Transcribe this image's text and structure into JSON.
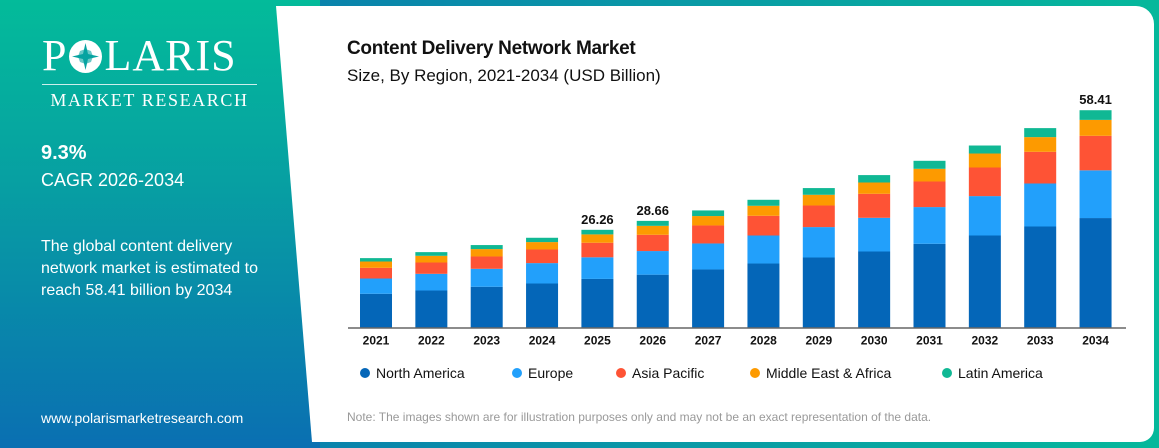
{
  "brand": {
    "name": "POLARIS",
    "tagline": "MARKET RESEARCH",
    "url": "www.polarismarketresearch.com"
  },
  "highlights": {
    "cagr_value": "9.3%",
    "cagr_label": "CAGR 2026-2034",
    "description": "The global content delivery network market is estimated to reach 58.41 billion by 2034"
  },
  "note": "Note: The images shown are for illustration purposes only and may not be an exact representation of the data.",
  "colors": {
    "North America": "#0466b8",
    "Europe": "#22a0fb",
    "Asia Pacific": "#fe5335",
    "Middle East & Africa": "#fd9a00",
    "Latin America": "#10b894"
  },
  "chart_data": {
    "type": "bar",
    "stacked": true,
    "title": "Content Delivery Network Market",
    "subtitle": "Size, By Region, 2021-2034 (USD Billion)",
    "xlabel": "",
    "ylabel": "",
    "ylim": [
      0,
      60
    ],
    "grid": false,
    "legend_position": "bottom",
    "categories": [
      "2021",
      "2022",
      "2023",
      "2024",
      "2025",
      "2026",
      "2027",
      "2028",
      "2029",
      "2030",
      "2031",
      "2032",
      "2033",
      "2034"
    ],
    "series": [
      {
        "name": "North America",
        "values": [
          9.06,
          9.95,
          10.94,
          11.83,
          13.06,
          14.2,
          15.6,
          17.2,
          18.82,
          20.43,
          22.5,
          24.73,
          27.15,
          29.42
        ]
      },
      {
        "name": "Europe",
        "values": [
          4.11,
          4.48,
          4.84,
          5.48,
          5.81,
          6.35,
          6.99,
          7.53,
          8.17,
          9.06,
          9.87,
          10.59,
          11.56,
          12.83
        ]
      },
      {
        "name": "Asia Pacific",
        "values": [
          2.87,
          3.04,
          3.31,
          3.66,
          3.91,
          4.37,
          4.84,
          5.3,
          5.81,
          6.45,
          6.88,
          7.69,
          8.52,
          9.28
        ]
      },
      {
        "name": "Middle East & Africa",
        "values": [
          1.7,
          1.8,
          1.99,
          1.99,
          2.25,
          2.41,
          2.53,
          2.69,
          2.88,
          3.04,
          3.41,
          3.76,
          3.95,
          4.28
        ]
      },
      {
        "name": "Latin America",
        "values": [
          0.91,
          0.99,
          1.08,
          1.16,
          1.23,
          1.33,
          1.51,
          1.61,
          1.8,
          1.99,
          2.15,
          2.15,
          2.42,
          2.6
        ]
      }
    ],
    "data_labels": [
      {
        "category": "2025",
        "text": "26.26"
      },
      {
        "category": "2026",
        "text": "28.66"
      },
      {
        "category": "2034",
        "text": "58.41"
      }
    ]
  }
}
